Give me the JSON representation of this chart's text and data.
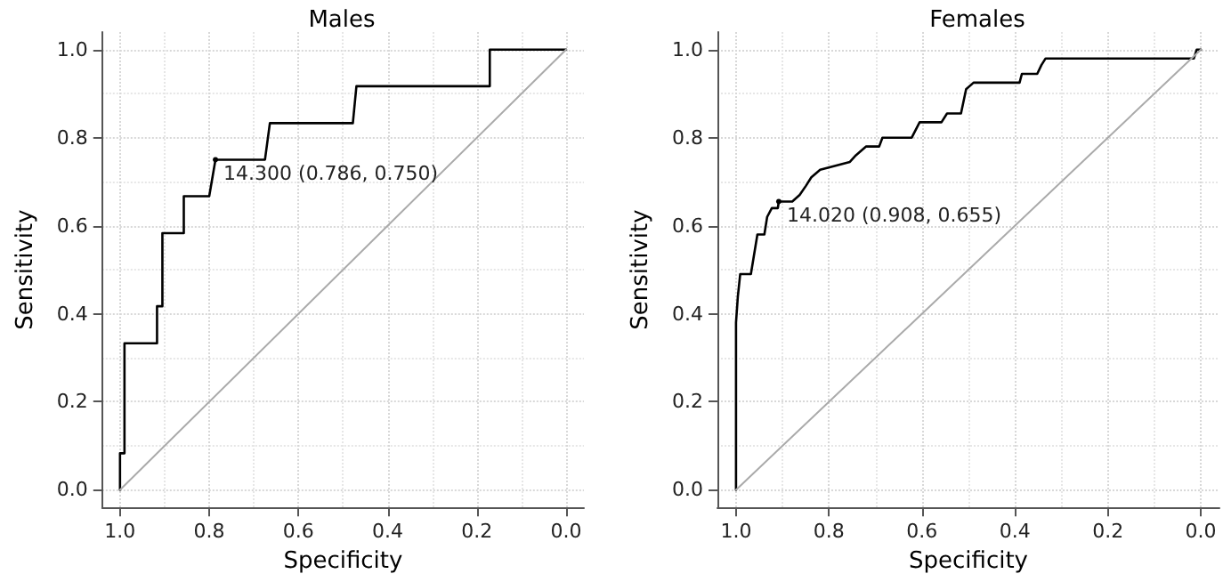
{
  "chart_data": [
    {
      "type": "line",
      "title": "Males",
      "xlabel": "Specificity",
      "ylabel": "Sensitivity",
      "xlim": [
        1.04,
        -0.04
      ],
      "ylim": [
        -0.04,
        1.04
      ],
      "xticks": [
        {
          "value": 1,
          "label": "1.0"
        },
        {
          "value": 0.8,
          "label": "0.8"
        },
        {
          "value": 0.6,
          "label": "0.6"
        },
        {
          "value": 0.4,
          "label": "0.4"
        },
        {
          "value": 0.2,
          "label": "0.2"
        },
        {
          "value": 0,
          "label": "0.0"
        }
      ],
      "yticks": [
        {
          "value": 0,
          "label": "0.0"
        },
        {
          "value": 0.2,
          "label": "0.2"
        },
        {
          "value": 0.4,
          "label": "0.4"
        },
        {
          "value": 0.6,
          "label": "0.6"
        },
        {
          "value": 0.8,
          "label": "0.8"
        },
        {
          "value": 1,
          "label": "1.0"
        }
      ],
      "grid": true,
      "marker": "none",
      "line_style": "solid",
      "series": [
        {
          "color": "#000000",
          "x": [
            1,
            1,
            0.99,
            0.99,
            0.917,
            0.917,
            0.905,
            0.905,
            0.857,
            0.857,
            0.8,
            0.786,
            0.675,
            0.664,
            0.478,
            0.47,
            0.171,
            0.171,
            0
          ],
          "values": [
            0,
            0.083,
            0.083,
            0.333,
            0.333,
            0.417,
            0.417,
            0.583,
            0.583,
            0.667,
            0.667,
            0.75,
            0.75,
            0.833,
            0.833,
            0.917,
            0.917,
            1,
            1
          ]
        },
        {
          "color": "#aaaaaa",
          "x": [
            1,
            0
          ],
          "values": [
            0,
            1
          ]
        }
      ],
      "annotations": [
        {
          "text": "14.300 (0.786, 0.750)",
          "x": 0.786,
          "y": 0.75
        }
      ]
    },
    {
      "type": "line",
      "title": "Females",
      "xlabel": "Specificity",
      "ylabel": "Sensitivity",
      "xlim": [
        1.04,
        -0.04
      ],
      "ylim": [
        -0.04,
        1.04
      ],
      "xticks": [
        {
          "value": 1,
          "label": "1.0"
        },
        {
          "value": 0.8,
          "label": "0.8"
        },
        {
          "value": 0.6,
          "label": "0.6"
        },
        {
          "value": 0.4,
          "label": "0.4"
        },
        {
          "value": 0.2,
          "label": "0.2"
        },
        {
          "value": 0,
          "label": "0.0"
        }
      ],
      "yticks": [
        {
          "value": 0,
          "label": "0.0"
        },
        {
          "value": 0.2,
          "label": "0.2"
        },
        {
          "value": 0.4,
          "label": "0.4"
        },
        {
          "value": 0.6,
          "label": "0.6"
        },
        {
          "value": 0.8,
          "label": "0.8"
        },
        {
          "value": 1,
          "label": "1.0"
        }
      ],
      "grid": true,
      "marker": "none",
      "line_style": "solid",
      "series": [
        {
          "color": "#000000",
          "x": [
            1,
            1,
            0.996,
            0.991,
            0.968,
            0.954,
            0.939,
            0.933,
            0.923,
            0.91,
            0.908,
            0.879,
            0.863,
            0.85,
            0.838,
            0.819,
            0.755,
            0.742,
            0.72,
            0.692,
            0.685,
            0.622,
            0.605,
            0.558,
            0.546,
            0.516,
            0.505,
            0.489,
            0.39,
            0.385,
            0.352,
            0.343,
            0.334,
            0.015,
            0.009,
            0
          ],
          "values": [
            0,
            0.38,
            0.44,
            0.49,
            0.49,
            0.58,
            0.58,
            0.62,
            0.64,
            0.64,
            0.655,
            0.655,
            0.67,
            0.69,
            0.71,
            0.727,
            0.745,
            0.76,
            0.78,
            0.78,
            0.8,
            0.8,
            0.835,
            0.835,
            0.855,
            0.855,
            0.91,
            0.925,
            0.925,
            0.945,
            0.945,
            0.965,
            0.98,
            0.98,
            1,
            1
          ]
        },
        {
          "color": "#aaaaaa",
          "x": [
            1,
            0
          ],
          "values": [
            0,
            1
          ]
        }
      ],
      "annotations": [
        {
          "text": "14.020 (0.908, 0.655)",
          "x": 0.908,
          "y": 0.655
        }
      ]
    }
  ]
}
